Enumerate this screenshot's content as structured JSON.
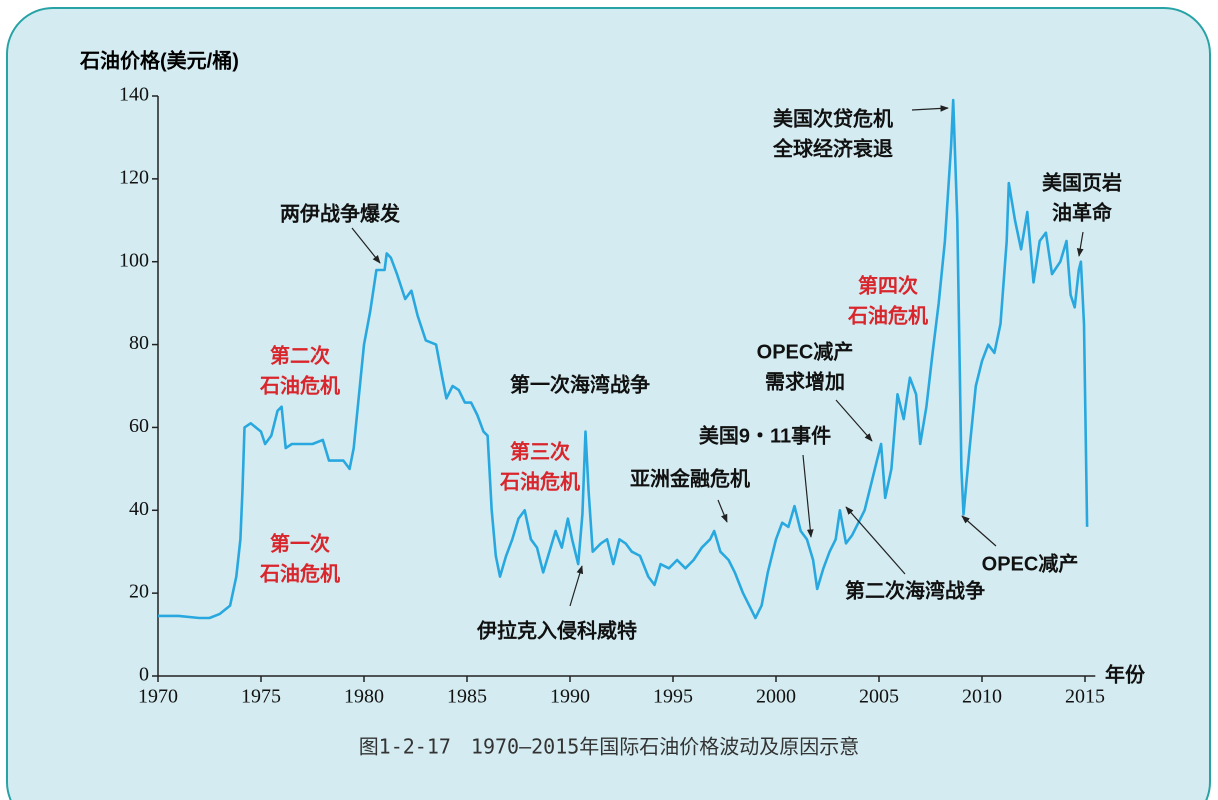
{
  "chart_data": {
    "type": "line",
    "y_label": "石油价格(美元/桶)",
    "x_label": "年份",
    "caption": "图1-2-17　1970—2015年国际石油价格波动及原因示意",
    "color": "#29a8e0",
    "xlim": [
      1970,
      2015.5
    ],
    "ylim": [
      0,
      140
    ],
    "xticks": [
      1970,
      1975,
      1980,
      1985,
      1990,
      1995,
      2000,
      2005,
      2010,
      2015
    ],
    "yticks": [
      0,
      20,
      40,
      60,
      80,
      100,
      120,
      140
    ],
    "x": [
      1970,
      1971,
      1972,
      1972.5,
      1973,
      1973.5,
      1973.8,
      1974.0,
      1974.1,
      1974.2,
      1974.5,
      1975.0,
      1975.2,
      1975.5,
      1975.8,
      1976.0,
      1976.2,
      1976.5,
      1977,
      1977.5,
      1978,
      1978.3,
      1979,
      1979.3,
      1979.5,
      1979.7,
      1980,
      1980.3,
      1980.6,
      1981,
      1981.1,
      1981.3,
      1981.6,
      1982,
      1982.3,
      1982.6,
      1983,
      1983.5,
      1983.8,
      1984,
      1984.3,
      1984.6,
      1984.9,
      1985.2,
      1985.5,
      1985.8,
      1986.0,
      1986.2,
      1986.4,
      1986.6,
      1986.9,
      1987.2,
      1987.5,
      1987.8,
      1988.1,
      1988.4,
      1988.7,
      1989,
      1989.3,
      1989.6,
      1989.9,
      1990.1,
      1990.4,
      1990.6,
      1990.75,
      1990.9,
      1991.1,
      1991.5,
      1991.8,
      1992.1,
      1992.4,
      1992.7,
      1993,
      1993.4,
      1993.8,
      1994.1,
      1994.4,
      1994.8,
      1995.2,
      1995.6,
      1996,
      1996.4,
      1996.8,
      1997,
      1997.3,
      1997.7,
      1998,
      1998.4,
      1998.8,
      1999,
      1999.3,
      1999.6,
      2000,
      2000.3,
      2000.6,
      2000.9,
      2001.2,
      2001.5,
      2001.8,
      2002.0,
      2002.3,
      2002.6,
      2002.9,
      2003.1,
      2003.4,
      2003.7,
      2004,
      2004.3,
      2004.6,
      2004.9,
      2005.1,
      2005.3,
      2005.6,
      2005.9,
      2006.2,
      2006.5,
      2006.8,
      2007,
      2007.3,
      2007.6,
      2007.9,
      2008.2,
      2008.5,
      2008.6,
      2008.8,
      2009.0,
      2009.1,
      2009.4,
      2009.7,
      2010,
      2010.3,
      2010.6,
      2010.9,
      2011.2,
      2011.3,
      2011.6,
      2011.9,
      2012.2,
      2012.5,
      2012.8,
      2013.1,
      2013.4,
      2013.8,
      2014.1,
      2014.3,
      2014.5,
      2014.7,
      2014.8,
      2014.95,
      2015.1
    ],
    "values": [
      14.5,
      14.5,
      14,
      14,
      15,
      17,
      24,
      33,
      45,
      60,
      61,
      59,
      56,
      58,
      64,
      65,
      55,
      56,
      56,
      56,
      57,
      52,
      52,
      50,
      55,
      65,
      80,
      88,
      98,
      98,
      102,
      101,
      97,
      91,
      93,
      87,
      81,
      80,
      72,
      67,
      70,
      69,
      66,
      66,
      63,
      59,
      58,
      40,
      29,
      24,
      29,
      33,
      38,
      40,
      33,
      31,
      25,
      30,
      35,
      31,
      38,
      33,
      27,
      39,
      59,
      45,
      30,
      32,
      33,
      27,
      33,
      32,
      30,
      29,
      24,
      22,
      27,
      26,
      28,
      26,
      28,
      31,
      33,
      35,
      30,
      28,
      25,
      20,
      16,
      14,
      17,
      25,
      33,
      37,
      36,
      41,
      35,
      33,
      28,
      21,
      26,
      30,
      33,
      40,
      32,
      34,
      37,
      40,
      46,
      52,
      56,
      43,
      50,
      68,
      62,
      72,
      68,
      56,
      65,
      78,
      90,
      105,
      128,
      139,
      110,
      50,
      39,
      55,
      70,
      76,
      80,
      78,
      85,
      105,
      119,
      110,
      103,
      112,
      95,
      105,
      107,
      97,
      100,
      105,
      92,
      89,
      98,
      100,
      85,
      36
    ],
    "annotations": [
      {
        "text": [
          "两伊战争爆发"
        ],
        "color": "#111111"
      },
      {
        "text": [
          "第二次",
          "石油危机"
        ],
        "color": "#d9262c"
      },
      {
        "text": [
          "第一次",
          "石油危机"
        ],
        "color": "#d9262c"
      },
      {
        "text": [
          "第一次海湾战争"
        ],
        "color": "#111111"
      },
      {
        "text": [
          "第三次",
          "石油危机"
        ],
        "color": "#d9262c"
      },
      {
        "text": [
          "伊拉克入侵科威特"
        ],
        "color": "#111111"
      },
      {
        "text": [
          "亚洲金融危机"
        ],
        "color": "#111111"
      },
      {
        "text": [
          "美国9・11事件"
        ],
        "color": "#111111"
      },
      {
        "text": [
          "OPEC减产",
          "需求增加"
        ],
        "color": "#111111"
      },
      {
        "text": [
          "第二次海湾战争"
        ],
        "color": "#111111"
      },
      {
        "text": [
          "第四次",
          "石油危机"
        ],
        "color": "#d9262c"
      },
      {
        "text": [
          "美国次贷危机",
          "全球经济衰退"
        ],
        "color": "#111111"
      },
      {
        "text": [
          "OPEC减产"
        ],
        "color": "#111111"
      },
      {
        "text": [
          "美国页岩",
          "油革命"
        ],
        "color": "#111111"
      }
    ]
  }
}
